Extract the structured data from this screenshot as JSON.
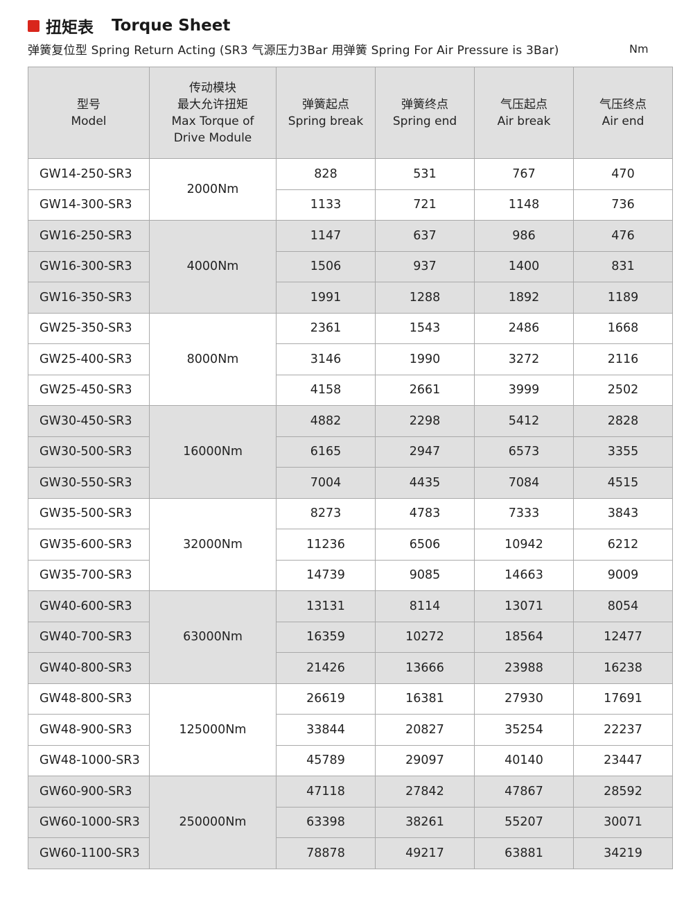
{
  "header": {
    "title_cn": "扭矩表",
    "title_en": "Torque Sheet",
    "subtitle": "弹簧复位型 Spring Return Acting (SR3 气源压力3Bar 用弹簧 Spring For Air Pressure is 3Bar)",
    "unit": "Nm",
    "accent_color": "#d9261c"
  },
  "table": {
    "columns": [
      [
        "型号",
        "Model"
      ],
      [
        "传动模块",
        "最大允许扭矩",
        "Max Torque of",
        "Drive Module"
      ],
      [
        "弹簧起点",
        "Spring break"
      ],
      [
        "弹簧终点",
        "Spring end"
      ],
      [
        "气压起点",
        "Air break"
      ],
      [
        "气压终点",
        "Air end"
      ]
    ],
    "groups": [
      {
        "max_torque": "2000Nm",
        "rows": [
          [
            "GW14-250-SR3",
            "828",
            "531",
            "767",
            "470"
          ],
          [
            "GW14-300-SR3",
            "1133",
            "721",
            "1148",
            "736"
          ]
        ]
      },
      {
        "max_torque": "4000Nm",
        "rows": [
          [
            "GW16-250-SR3",
            "1147",
            "637",
            "986",
            "476"
          ],
          [
            "GW16-300-SR3",
            "1506",
            "937",
            "1400",
            "831"
          ],
          [
            "GW16-350-SR3",
            "1991",
            "1288",
            "1892",
            "1189"
          ]
        ]
      },
      {
        "max_torque": "8000Nm",
        "rows": [
          [
            "GW25-350-SR3",
            "2361",
            "1543",
            "2486",
            "1668"
          ],
          [
            "GW25-400-SR3",
            "3146",
            "1990",
            "3272",
            "2116"
          ],
          [
            "GW25-450-SR3",
            "4158",
            "2661",
            "3999",
            "2502"
          ]
        ]
      },
      {
        "max_torque": "16000Nm",
        "rows": [
          [
            "GW30-450-SR3",
            "4882",
            "2298",
            "5412",
            "2828"
          ],
          [
            "GW30-500-SR3",
            "6165",
            "2947",
            "6573",
            "3355"
          ],
          [
            "GW30-550-SR3",
            "7004",
            "4435",
            "7084",
            "4515"
          ]
        ]
      },
      {
        "max_torque": "32000Nm",
        "rows": [
          [
            "GW35-500-SR3",
            "8273",
            "4783",
            "7333",
            "3843"
          ],
          [
            "GW35-600-SR3",
            "11236",
            "6506",
            "10942",
            "6212"
          ],
          [
            "GW35-700-SR3",
            "14739",
            "9085",
            "14663",
            "9009"
          ]
        ]
      },
      {
        "max_torque": "63000Nm",
        "rows": [
          [
            "GW40-600-SR3",
            "13131",
            "8114",
            "13071",
            "8054"
          ],
          [
            "GW40-700-SR3",
            "16359",
            "10272",
            "18564",
            "12477"
          ],
          [
            "GW40-800-SR3",
            "21426",
            "13666",
            "23988",
            "16238"
          ]
        ]
      },
      {
        "max_torque": "125000Nm",
        "rows": [
          [
            "GW48-800-SR3",
            "26619",
            "16381",
            "27930",
            "17691"
          ],
          [
            "GW48-900-SR3",
            "33844",
            "20827",
            "35254",
            "22237"
          ],
          [
            "GW48-1000-SR3",
            "45789",
            "29097",
            "40140",
            "23447"
          ]
        ]
      },
      {
        "max_torque": "250000Nm",
        "rows": [
          [
            "GW60-900-SR3",
            "47118",
            "27842",
            "47867",
            "28592"
          ],
          [
            "GW60-1000-SR3",
            "63398",
            "38261",
            "55207",
            "30071"
          ],
          [
            "GW60-1100-SR3",
            "78878",
            "49217",
            "63881",
            "34219"
          ]
        ]
      }
    ]
  }
}
